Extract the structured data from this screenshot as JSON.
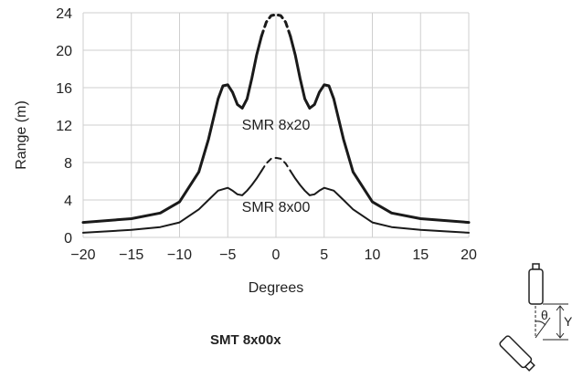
{
  "caption": "SMT 8x00x",
  "diagram": {
    "angle_label": "θ",
    "y_label": "Y"
  },
  "chart_data": {
    "type": "line",
    "xlabel": "Degrees",
    "ylabel": "Range (m)",
    "xlim": [
      -20,
      20
    ],
    "ylim": [
      0,
      24
    ],
    "xticks": [
      -20,
      -15,
      -10,
      -5,
      0,
      5,
      10,
      15,
      20
    ],
    "yticks": [
      0,
      4,
      8,
      12,
      16,
      20,
      24
    ],
    "grid": true,
    "series": [
      {
        "name": "SMR 8x20",
        "dashed_range": [
          -1.5,
          1.5
        ],
        "points": [
          [
            -20,
            1.6
          ],
          [
            -15,
            2.0
          ],
          [
            -12,
            2.6
          ],
          [
            -10,
            3.8
          ],
          [
            -8,
            7.0
          ],
          [
            -7,
            10.5
          ],
          [
            -6,
            14.8
          ],
          [
            -5.5,
            16.2
          ],
          [
            -5,
            16.3
          ],
          [
            -4.5,
            15.5
          ],
          [
            -4,
            14.2
          ],
          [
            -3.5,
            13.8
          ],
          [
            -3,
            14.8
          ],
          [
            -2.5,
            17.0
          ],
          [
            -2,
            19.5
          ],
          [
            -1.5,
            21.5
          ],
          [
            -1,
            23.0
          ],
          [
            -0.5,
            23.7
          ],
          [
            0,
            23.8
          ],
          [
            0.5,
            23.7
          ],
          [
            1,
            23.0
          ],
          [
            1.5,
            21.5
          ],
          [
            2,
            19.5
          ],
          [
            2.5,
            17.0
          ],
          [
            3,
            14.8
          ],
          [
            3.5,
            13.8
          ],
          [
            4,
            14.2
          ],
          [
            4.5,
            15.5
          ],
          [
            5,
            16.3
          ],
          [
            5.5,
            16.2
          ],
          [
            6,
            14.8
          ],
          [
            7,
            10.5
          ],
          [
            8,
            7.0
          ],
          [
            10,
            3.8
          ],
          [
            12,
            2.6
          ],
          [
            15,
            2.0
          ],
          [
            20,
            1.6
          ]
        ]
      },
      {
        "name": "SMR 8x00",
        "dashed_range": [
          -1.5,
          1.5
        ],
        "points": [
          [
            -20,
            0.5
          ],
          [
            -15,
            0.8
          ],
          [
            -12,
            1.1
          ],
          [
            -10,
            1.6
          ],
          [
            -8,
            3.0
          ],
          [
            -7,
            4.0
          ],
          [
            -6,
            5.0
          ],
          [
            -5,
            5.3
          ],
          [
            -4.5,
            5.0
          ],
          [
            -4,
            4.6
          ],
          [
            -3.5,
            4.5
          ],
          [
            -3,
            5.0
          ],
          [
            -2.5,
            5.6
          ],
          [
            -2,
            6.3
          ],
          [
            -1.5,
            7.1
          ],
          [
            -1,
            7.9
          ],
          [
            -0.5,
            8.4
          ],
          [
            0,
            8.5
          ],
          [
            0.5,
            8.4
          ],
          [
            1,
            7.9
          ],
          [
            1.5,
            7.1
          ],
          [
            2,
            6.3
          ],
          [
            2.5,
            5.6
          ],
          [
            3,
            5.0
          ],
          [
            3.5,
            4.5
          ],
          [
            4,
            4.6
          ],
          [
            4.5,
            5.0
          ],
          [
            5,
            5.3
          ],
          [
            6,
            5.0
          ],
          [
            7,
            4.0
          ],
          [
            8,
            3.0
          ],
          [
            10,
            1.6
          ],
          [
            12,
            1.1
          ],
          [
            15,
            0.8
          ],
          [
            20,
            0.5
          ]
        ]
      }
    ]
  }
}
